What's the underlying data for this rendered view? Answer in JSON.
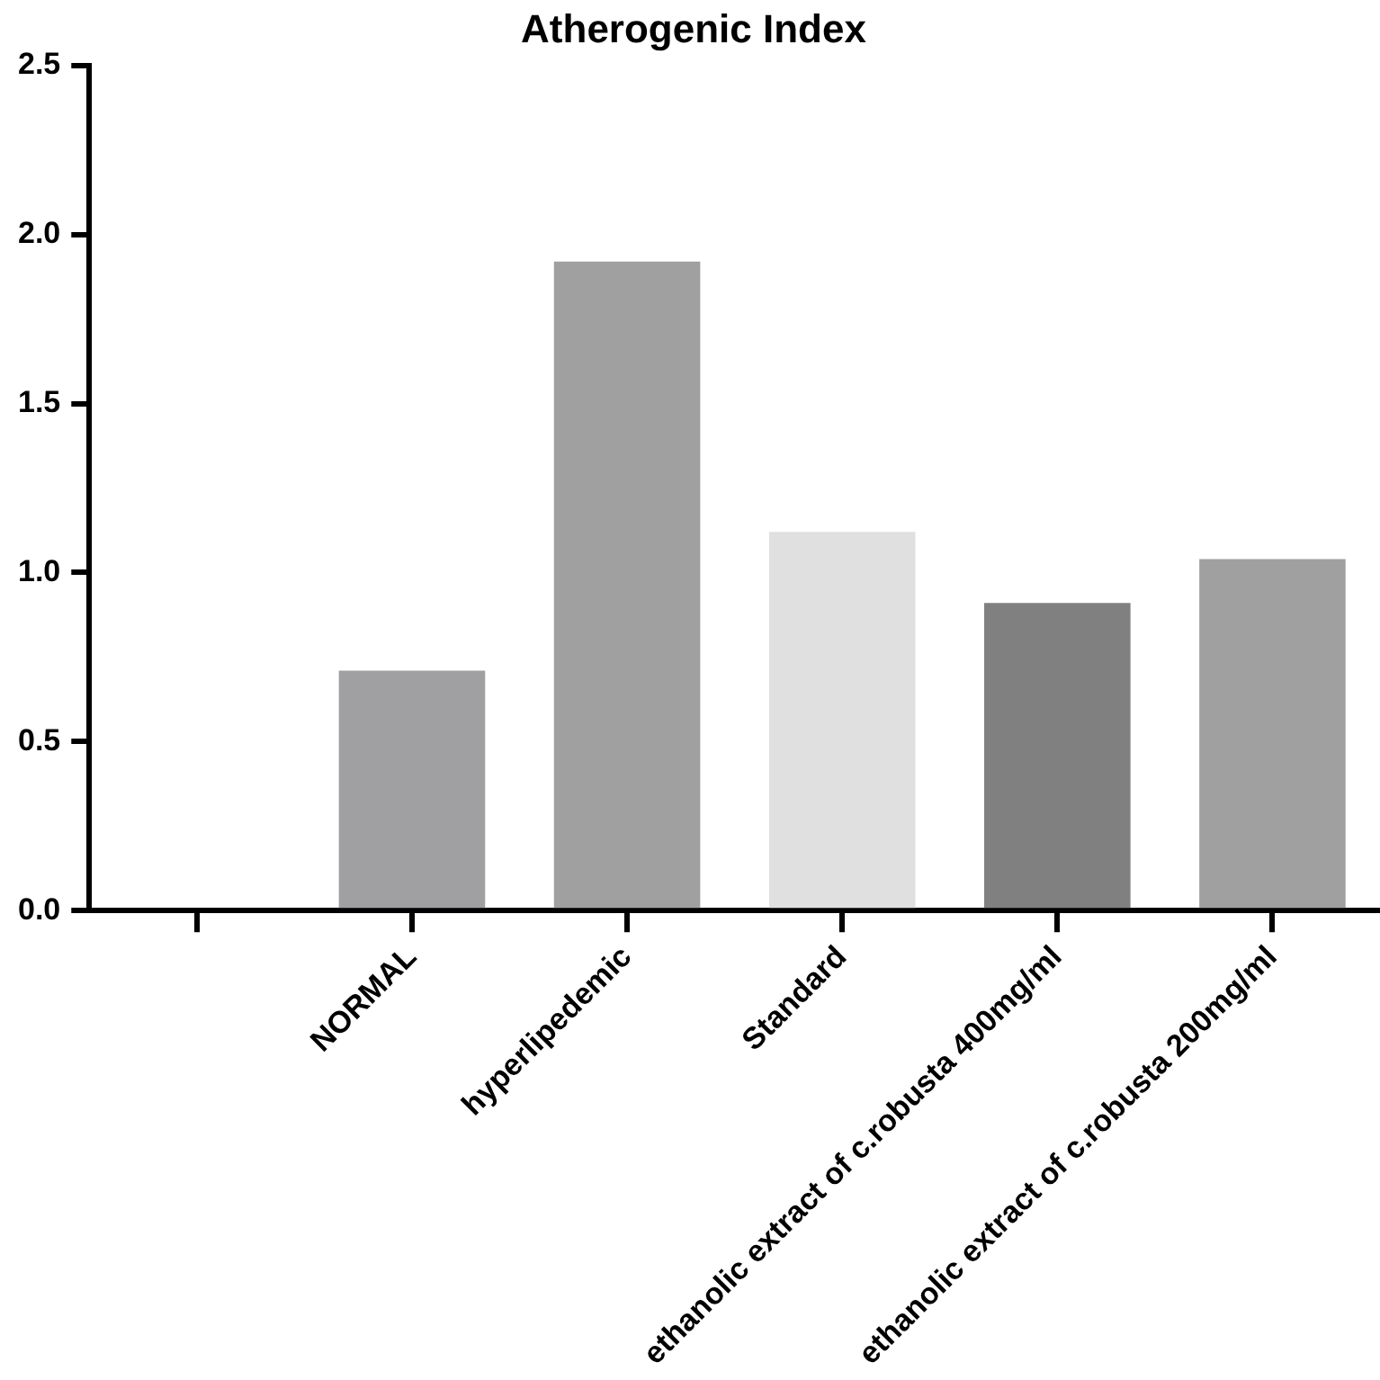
{
  "chart_data": {
    "type": "bar",
    "title": "Atherogenic Index",
    "categories": [
      null,
      "NORMAL",
      "hyperlipedemic",
      "Standard",
      "ethanolic extract of c.robusta 400mg/ml",
      "ethanolic extract of c.robusta 200mg/ml"
    ],
    "values": [
      null,
      0.71,
      1.92,
      1.12,
      0.91,
      1.04
    ],
    "colors": [
      "#a0a0a2",
      "#a0a0a2",
      "#a0a0a0",
      "#e0e0e0",
      "#808080",
      "#a0a0a0"
    ],
    "ylim": [
      0,
      2.5
    ],
    "yticks": [
      {
        "value": 0,
        "label": "0.0"
      },
      {
        "value": 0.5,
        "label": "0.5"
      },
      {
        "value": 1,
        "label": "1.0"
      },
      {
        "value": 1.5,
        "label": "1.5"
      },
      {
        "value": 2,
        "label": "2.0"
      },
      {
        "value": 2.5,
        "label": "2.5"
      }
    ],
    "grid": false,
    "legend": false
  }
}
